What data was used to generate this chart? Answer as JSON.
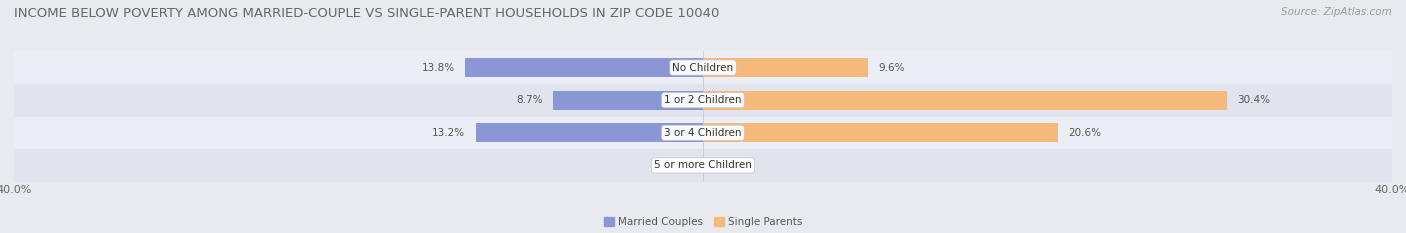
{
  "title": "INCOME BELOW POVERTY AMONG MARRIED-COUPLE VS SINGLE-PARENT HOUSEHOLDS IN ZIP CODE 10040",
  "source": "Source: ZipAtlas.com",
  "categories": [
    "No Children",
    "1 or 2 Children",
    "3 or 4 Children",
    "5 or more Children"
  ],
  "married_values": [
    13.8,
    8.7,
    13.2,
    0.0
  ],
  "single_values": [
    9.6,
    30.4,
    20.6,
    0.0
  ],
  "married_color": "#8b96d4",
  "single_color": "#f5b97a",
  "background_color": "#e8eaf0",
  "row_bg_colors": [
    "#eceef5",
    "#e2e4ed",
    "#eceef5",
    "#e2e4ed"
  ],
  "max_value": 40.0,
  "legend_married": "Married Couples",
  "legend_single": "Single Parents",
  "title_fontsize": 9.5,
  "source_fontsize": 7.5,
  "label_fontsize": 7.5,
  "category_fontsize": 7.5,
  "axis_label_fontsize": 8
}
